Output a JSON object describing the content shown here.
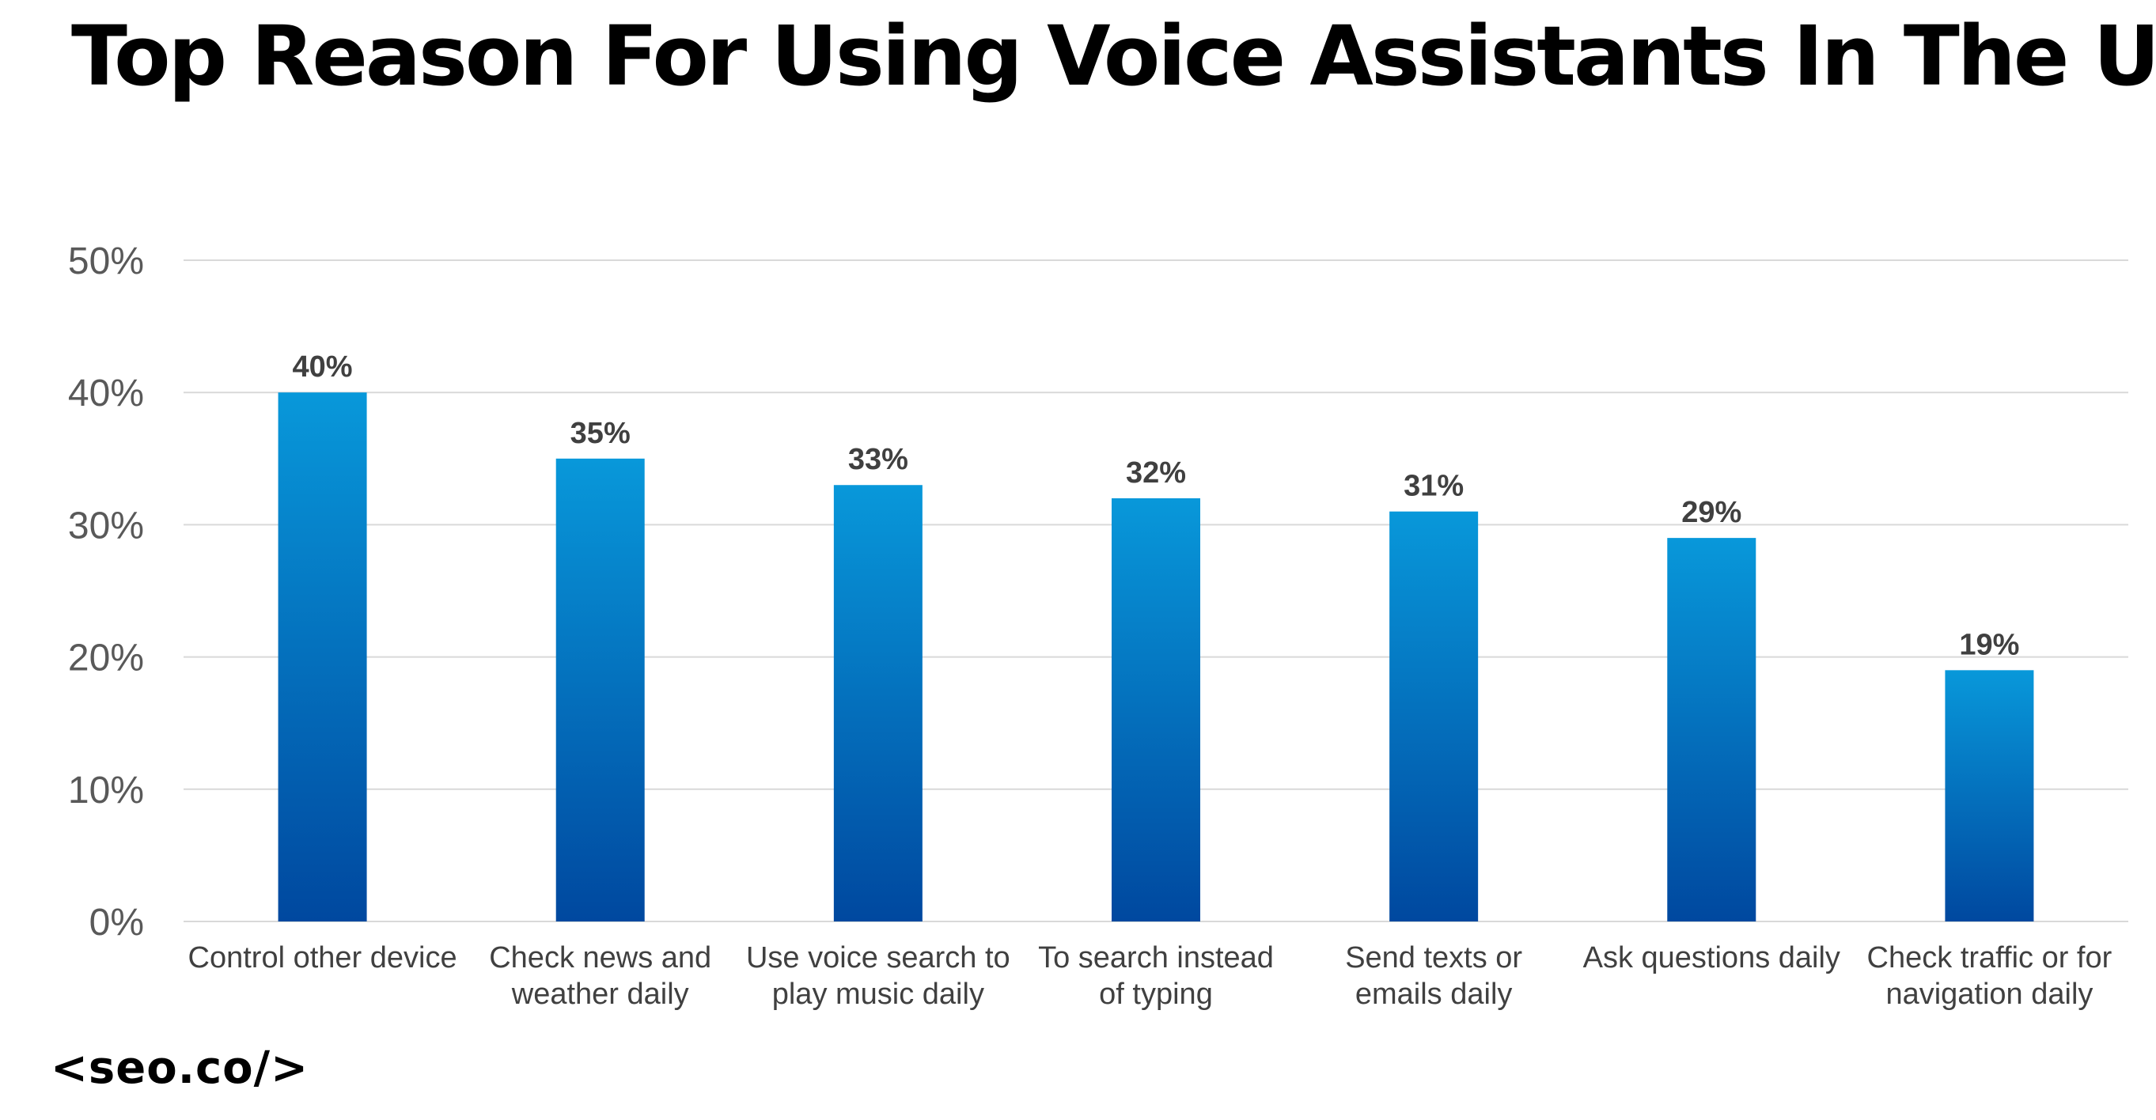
{
  "title": "Top Reason For Using Voice Assistants In The US",
  "brand": "<seo.co/>",
  "colors": {
    "bar_top": "#0898DA",
    "bar_bottom": "#00489F",
    "grid": "#D9D9D9",
    "axis_text": "#595959",
    "label_text": "#404040"
  },
  "chart_data": {
    "type": "bar",
    "title": "Top Reason For Using Voice Assistants In The US",
    "categories": [
      [
        "Control other device"
      ],
      [
        "Check news and",
        "weather daily"
      ],
      [
        "Use voice search to",
        "play music daily"
      ],
      [
        "To search instead",
        "of typing"
      ],
      [
        "Send texts or",
        "emails daily"
      ],
      [
        "Ask questions daily"
      ],
      [
        "Check traffic or for",
        "navigation daily"
      ]
    ],
    "values": [
      40,
      35,
      33,
      32,
      31,
      29,
      19
    ],
    "value_labels": [
      "40%",
      "35%",
      "33%",
      "32%",
      "31%",
      "29%",
      "19%"
    ],
    "yticks": [
      0,
      10,
      20,
      30,
      40,
      50
    ],
    "ytick_labels": [
      "0%",
      "10%",
      "20%",
      "30%",
      "40%",
      "50%"
    ],
    "ylim": [
      0,
      50
    ],
    "xlabel": "",
    "ylabel": "",
    "grid": true,
    "legend": "none"
  }
}
